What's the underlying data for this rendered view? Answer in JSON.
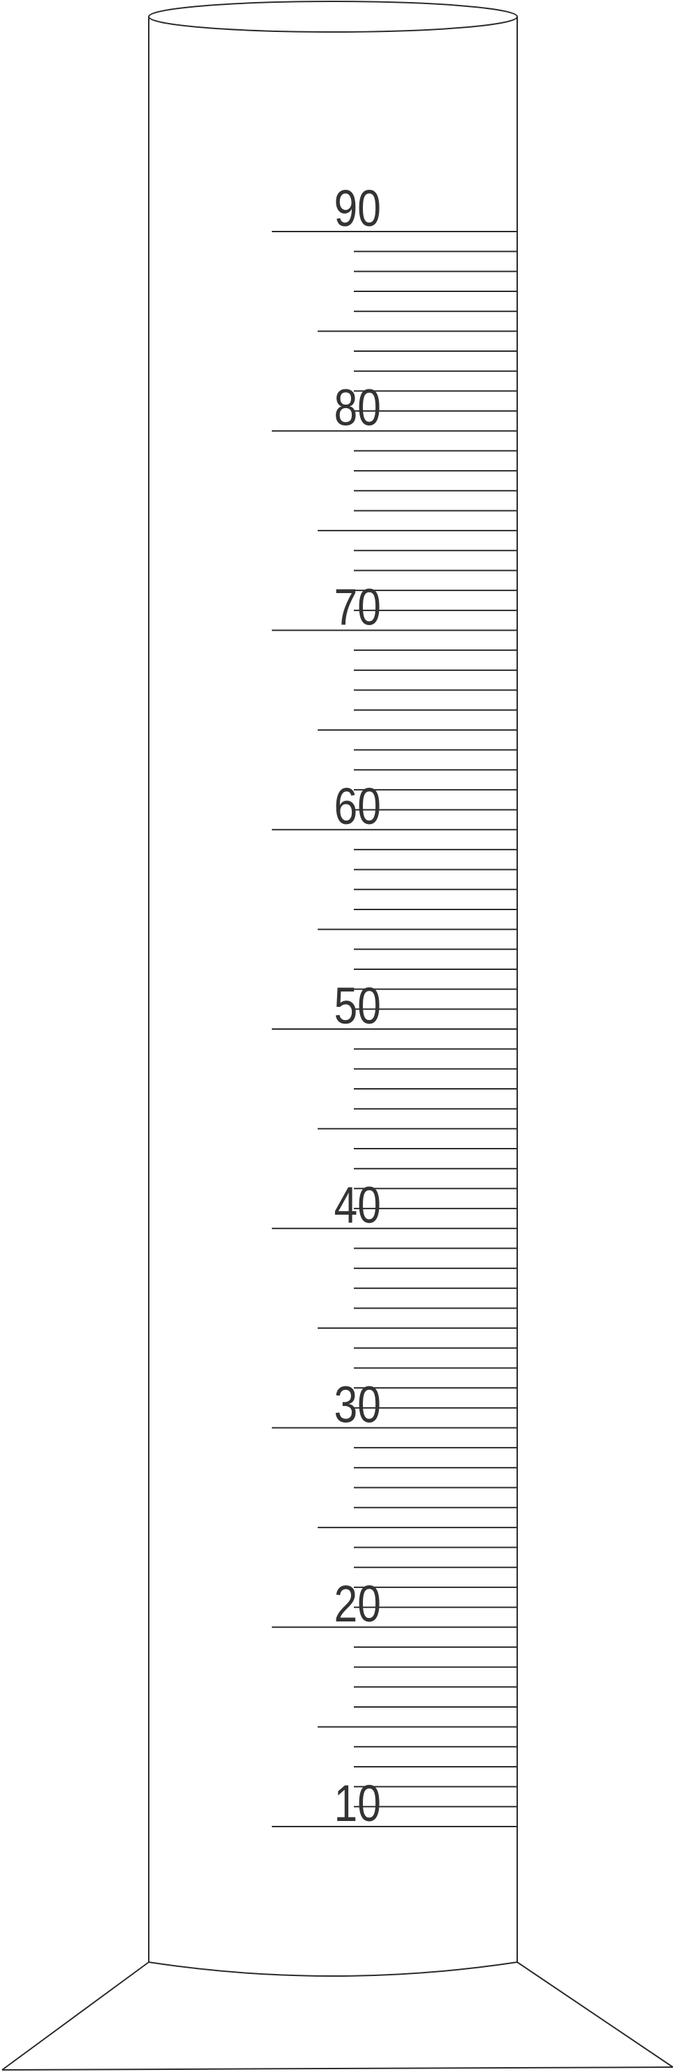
{
  "figure": "graduated cylinder",
  "scale": {
    "labels": [
      "10",
      "20",
      "30",
      "40",
      "50",
      "60",
      "70",
      "80",
      "90"
    ],
    "major_every": 10,
    "mid_every": 5,
    "minor_every": 1,
    "min": 10,
    "max": 90
  },
  "colors": {
    "line": "#2b2b2b",
    "text": "#333333",
    "background": "#ffffff"
  }
}
